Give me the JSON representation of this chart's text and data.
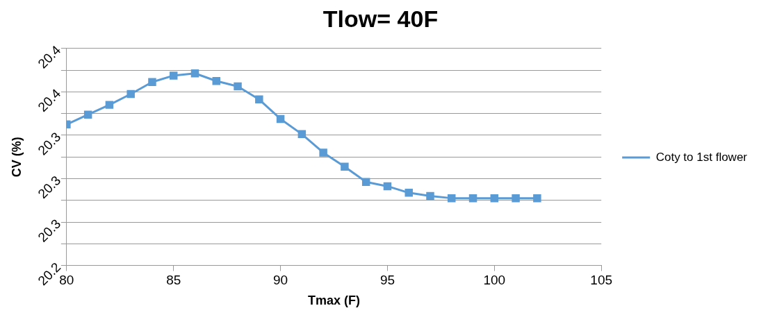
{
  "chart_data": {
    "type": "line",
    "title": "Tlow= 40F",
    "xlabel": "Tmax (F)",
    "ylabel": "CV (%)",
    "x": [
      80,
      81,
      82,
      83,
      84,
      85,
      86,
      87,
      88,
      89,
      90,
      91,
      92,
      93,
      94,
      95,
      96,
      97,
      98,
      99,
      100,
      101,
      102
    ],
    "series": [
      {
        "name": "Coty to 1st flower",
        "color": "#5b9bd5",
        "values": [
          20.35,
          20.359,
          20.368,
          20.378,
          20.389,
          20.395,
          20.397,
          20.39,
          20.385,
          20.373,
          20.355,
          20.341,
          20.324,
          20.311,
          20.297,
          20.293,
          20.287,
          20.284,
          20.282,
          20.282,
          20.282,
          20.282,
          20.282
        ]
      }
    ],
    "xlim": [
      80,
      105
    ],
    "xticks": [
      80,
      85,
      90,
      95,
      100,
      105
    ],
    "ylim": [
      20.22,
      20.42
    ],
    "yticks": [
      {
        "value": 20.22,
        "label": "20.2"
      },
      {
        "value": 20.24,
        "label": null
      },
      {
        "value": 20.26,
        "label": "20.3"
      },
      {
        "value": 20.28,
        "label": null
      },
      {
        "value": 20.3,
        "label": "20.3"
      },
      {
        "value": 20.32,
        "label": null
      },
      {
        "value": 20.34,
        "label": "20.3"
      },
      {
        "value": 20.36,
        "label": null
      },
      {
        "value": 20.38,
        "label": "20.4"
      },
      {
        "value": 20.4,
        "label": null
      },
      {
        "value": 20.42,
        "label": "20.4"
      }
    ],
    "grid": "y",
    "legend": "right",
    "marker": "square",
    "line_style": "solid"
  }
}
